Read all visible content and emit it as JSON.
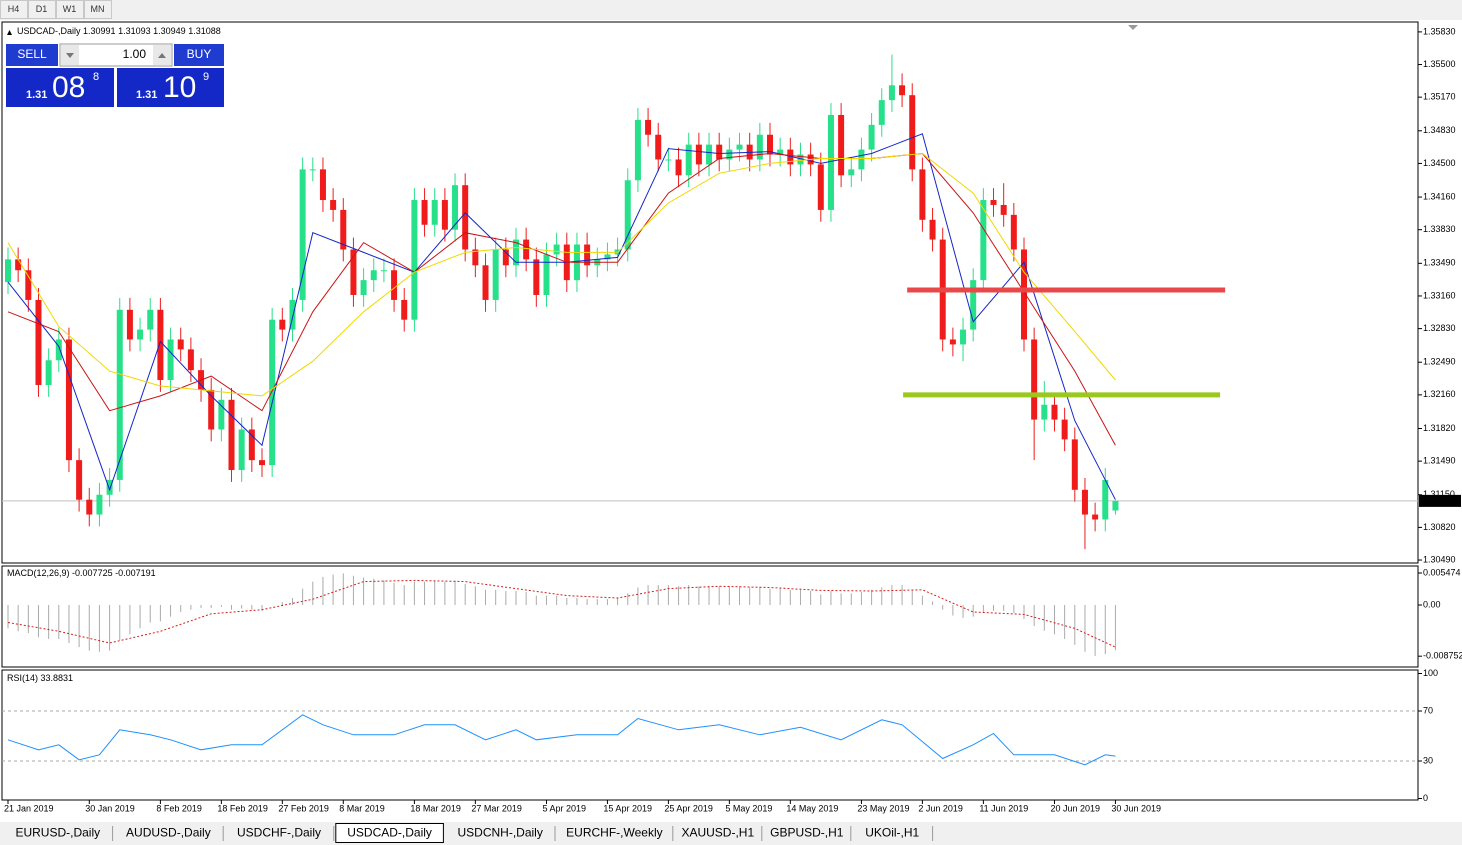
{
  "toolbar": {
    "periods": [
      "H4",
      "D1",
      "W1",
      "MN"
    ]
  },
  "trade_panel": {
    "sell": "SELL",
    "buy": "BUY",
    "lot": "1.00",
    "bid": {
      "big": "1.31",
      "pips": "08",
      "point": "8"
    },
    "ask": {
      "big": "1.31",
      "pips": "10",
      "point": "9"
    }
  },
  "chart_data": [
    {
      "type": "candlestick",
      "symbol": "USDCAD-,Daily",
      "up_color": "#26e08a",
      "down_color": "#f01c1c",
      "open": [
        1.333,
        1.3353,
        1.3342,
        1.3312,
        1.3226,
        1.3251,
        1.3272,
        1.315,
        1.311,
        1.3095,
        1.3115,
        1.313,
        1.3302,
        1.3272,
        1.3282,
        1.3302,
        1.3231,
        1.3272,
        1.3262,
        1.3241,
        1.3221,
        1.3181,
        1.3211,
        1.314,
        1.3181,
        1.315,
        1.3145,
        1.3292,
        1.3282,
        1.3312,
        1.3444,
        1.3444,
        1.3413,
        1.3403,
        1.3363,
        1.3317,
        1.3332,
        1.3342,
        1.3342,
        1.3312,
        1.3292,
        1.3413,
        1.3388,
        1.3413,
        1.3383,
        1.3428,
        1.3363,
        1.3347,
        1.3312,
        1.3363,
        1.3347,
        1.3373,
        1.3353,
        1.3317,
        1.3358,
        1.3368,
        1.3332,
        1.3368,
        1.3347,
        1.3353,
        1.3358,
        1.3363,
        1.3433,
        1.3494,
        1.3479,
        1.3454,
        1.3454,
        1.3438,
        1.3469,
        1.3449,
        1.3469,
        1.3454,
        1.3464,
        1.3469,
        1.3454,
        1.3479,
        1.3459,
        1.3464,
        1.3449,
        1.3459,
        1.3449,
        1.3403,
        1.3499,
        1.3438,
        1.3444,
        1.3464,
        1.3489,
        1.3514,
        1.3529,
        1.3519,
        1.3444,
        1.3393,
        1.3373,
        1.3272,
        1.3267,
        1.3282,
        1.3332,
        1.3413,
        1.3408,
        1.3398,
        1.3363,
        1.3272,
        1.3191,
        1.3206,
        1.3191,
        1.3171,
        1.312,
        1.3095,
        1.309,
        1.30991
      ],
      "high": [
        1.3365,
        1.3365,
        1.3354,
        1.3324,
        1.3263,
        1.3284,
        1.3284,
        1.3162,
        1.3122,
        1.3127,
        1.3142,
        1.3314,
        1.3314,
        1.3294,
        1.3314,
        1.3314,
        1.3284,
        1.3284,
        1.3274,
        1.3253,
        1.3233,
        1.3223,
        1.3223,
        1.3193,
        1.3193,
        1.3162,
        1.3304,
        1.3304,
        1.3324,
        1.3456,
        1.3456,
        1.3456,
        1.3425,
        1.3415,
        1.3375,
        1.3344,
        1.3354,
        1.3354,
        1.3354,
        1.3324,
        1.3425,
        1.3425,
        1.3425,
        1.3425,
        1.344,
        1.344,
        1.3375,
        1.3359,
        1.3375,
        1.3375,
        1.3385,
        1.3385,
        1.3365,
        1.337,
        1.338,
        1.338,
        1.338,
        1.338,
        1.3365,
        1.337,
        1.3375,
        1.3445,
        1.3506,
        1.3506,
        1.3491,
        1.3466,
        1.3466,
        1.3481,
        1.3481,
        1.3481,
        1.3481,
        1.3476,
        1.3481,
        1.3481,
        1.3491,
        1.3491,
        1.3476,
        1.3476,
        1.3471,
        1.3471,
        1.3461,
        1.3511,
        1.3511,
        1.3456,
        1.3476,
        1.3501,
        1.3526,
        1.356,
        1.3541,
        1.3531,
        1.3456,
        1.3405,
        1.3385,
        1.3284,
        1.3294,
        1.3344,
        1.3425,
        1.3425,
        1.343,
        1.341,
        1.3375,
        1.3284,
        1.323,
        1.3218,
        1.3203,
        1.3183,
        1.3132,
        1.3107,
        1.3142,
        1.31093
      ],
      "low": [
        1.3318,
        1.333,
        1.33,
        1.3214,
        1.3214,
        1.3239,
        1.3138,
        1.3098,
        1.3083,
        1.3083,
        1.3103,
        1.3118,
        1.326,
        1.326,
        1.327,
        1.3219,
        1.3219,
        1.325,
        1.3229,
        1.3209,
        1.3169,
        1.3169,
        1.3128,
        1.3128,
        1.3138,
        1.3133,
        1.3133,
        1.327,
        1.327,
        1.33,
        1.3432,
        1.3401,
        1.3391,
        1.3351,
        1.3305,
        1.3305,
        1.332,
        1.333,
        1.33,
        1.328,
        1.328,
        1.3376,
        1.3376,
        1.3371,
        1.3371,
        1.3351,
        1.3335,
        1.33,
        1.33,
        1.3335,
        1.3335,
        1.3341,
        1.3305,
        1.3305,
        1.3346,
        1.332,
        1.332,
        1.3335,
        1.3335,
        1.3341,
        1.3346,
        1.3351,
        1.3421,
        1.3467,
        1.3442,
        1.3442,
        1.3426,
        1.3426,
        1.3437,
        1.3437,
        1.3442,
        1.3442,
        1.3452,
        1.3442,
        1.3442,
        1.3447,
        1.3447,
        1.3437,
        1.3437,
        1.3437,
        1.3391,
        1.3391,
        1.3426,
        1.3426,
        1.3432,
        1.3452,
        1.3477,
        1.3502,
        1.3507,
        1.3432,
        1.3381,
        1.3361,
        1.326,
        1.3255,
        1.325,
        1.327,
        1.332,
        1.3396,
        1.3386,
        1.3351,
        1.326,
        1.315,
        1.3179,
        1.3179,
        1.3159,
        1.3108,
        1.306,
        1.3078,
        1.3078,
        1.30949
      ],
      "close": [
        1.3353,
        1.3342,
        1.3312,
        1.3226,
        1.3251,
        1.3272,
        1.315,
        1.311,
        1.3095,
        1.3115,
        1.313,
        1.3302,
        1.3272,
        1.3282,
        1.3302,
        1.3231,
        1.3272,
        1.3262,
        1.3241,
        1.3221,
        1.3181,
        1.3211,
        1.314,
        1.3181,
        1.315,
        1.3145,
        1.3292,
        1.3282,
        1.3312,
        1.3444,
        1.3444,
        1.3413,
        1.3403,
        1.3363,
        1.3317,
        1.3332,
        1.3342,
        1.3342,
        1.3312,
        1.3292,
        1.3413,
        1.3388,
        1.3413,
        1.3383,
        1.3428,
        1.3363,
        1.3347,
        1.3312,
        1.3363,
        1.3347,
        1.3373,
        1.3353,
        1.3317,
        1.3358,
        1.3368,
        1.3332,
        1.3368,
        1.3347,
        1.3353,
        1.3358,
        1.3363,
        1.3433,
        1.3494,
        1.3479,
        1.3454,
        1.3454,
        1.3438,
        1.3469,
        1.3449,
        1.3469,
        1.3454,
        1.3464,
        1.3469,
        1.3454,
        1.3479,
        1.3459,
        1.3464,
        1.3449,
        1.3459,
        1.3449,
        1.3403,
        1.3499,
        1.3438,
        1.3444,
        1.3464,
        1.3489,
        1.3514,
        1.3529,
        1.3519,
        1.3444,
        1.3393,
        1.3373,
        1.3272,
        1.3267,
        1.3282,
        1.3332,
        1.3413,
        1.3408,
        1.3398,
        1.3363,
        1.3272,
        1.3191,
        1.3206,
        1.3191,
        1.3171,
        1.312,
        1.3095,
        1.309,
        1.313,
        1.31088
      ],
      "xlim": [
        -0.59,
        138.78
      ],
      "ylim": [
        1.3046,
        1.3593
      ],
      "yticks": [
        {
          "value": 1.3583,
          "label": "1.35830"
        },
        {
          "value": 1.355,
          "label": "1.35500"
        },
        {
          "value": 1.3517,
          "label": "1.35170"
        },
        {
          "value": 1.3483,
          "label": "1.34830"
        },
        {
          "value": 1.345,
          "label": "1.34500"
        },
        {
          "value": 1.3416,
          "label": "1.34160"
        },
        {
          "value": 1.3383,
          "label": "1.33830"
        },
        {
          "value": 1.3349,
          "label": "1.33490"
        },
        {
          "value": 1.3316,
          "label": "1.33160"
        },
        {
          "value": 1.3283,
          "label": "1.32830"
        },
        {
          "value": 1.3249,
          "label": "1.32490"
        },
        {
          "value": 1.3216,
          "label": "1.32160"
        },
        {
          "value": 1.3182,
          "label": "1.31820"
        },
        {
          "value": 1.3149,
          "label": "1.31490"
        },
        {
          "value": 1.3115,
          "label": "1.31150"
        },
        {
          "value": 1.3082,
          "label": "1.30820"
        },
        {
          "value": 1.3049,
          "label": "1.30490"
        }
      ],
      "xticks": [
        {
          "value": 0,
          "label": "21 Jan 2019"
        },
        {
          "value": 8,
          "label": "30 Jan 2019"
        },
        {
          "value": 15,
          "label": "8 Feb 2019"
        },
        {
          "value": 21,
          "label": "18 Feb 2019"
        },
        {
          "value": 27,
          "label": "27 Feb 2019"
        },
        {
          "value": 33,
          "label": "8 Mar 2019"
        },
        {
          "value": 40,
          "label": "18 Mar 2019"
        },
        {
          "value": 46,
          "label": "27 Mar 2019"
        },
        {
          "value": 53,
          "label": "5 Apr 2019"
        },
        {
          "value": 59,
          "label": "15 Apr 2019"
        },
        {
          "value": 65,
          "label": "25 Apr 2019"
        },
        {
          "value": 71,
          "label": "5 May 2019"
        },
        {
          "value": 77,
          "label": "14 May 2019"
        },
        {
          "value": 84,
          "label": "23 May 2019"
        },
        {
          "value": 90,
          "label": "2 Jun 2019"
        },
        {
          "value": 96,
          "label": "11 Jun 2019"
        },
        {
          "value": 103,
          "label": "20 Jun 2019"
        },
        {
          "value": 109,
          "label": "30 Jun 2019"
        }
      ],
      "series": [
        {
          "color": "#1426c8",
          "x": [
            0,
            5,
            10,
            15,
            20,
            25,
            30,
            35,
            40,
            45,
            50,
            55,
            60,
            65,
            70,
            75,
            80,
            85,
            90,
            95,
            100,
            105,
            109
          ],
          "values": [
            1.333,
            1.3265,
            1.312,
            1.327,
            1.3215,
            1.3165,
            1.338,
            1.336,
            1.334,
            1.34,
            1.335,
            1.335,
            1.3355,
            1.3465,
            1.346,
            1.3462,
            1.345,
            1.346,
            1.348,
            1.329,
            1.335,
            1.319,
            1.311
          ]
        },
        {
          "color": "#c81414",
          "x": [
            0,
            5,
            10,
            15,
            20,
            25,
            30,
            35,
            40,
            45,
            50,
            55,
            60,
            65,
            70,
            75,
            80,
            85,
            90,
            95,
            100,
            105,
            109
          ],
          "values": [
            1.33,
            1.328,
            1.32,
            1.3215,
            1.3235,
            1.32,
            1.33,
            1.337,
            1.334,
            1.338,
            1.337,
            1.335,
            1.335,
            1.342,
            1.3455,
            1.346,
            1.3455,
            1.3455,
            1.346,
            1.34,
            1.332,
            1.324,
            1.3165
          ]
        },
        {
          "color": "#f0d800",
          "x": [
            0,
            5,
            10,
            15,
            20,
            25,
            30,
            35,
            40,
            45,
            50,
            55,
            60,
            65,
            70,
            75,
            80,
            85,
            90,
            95,
            100,
            105,
            109
          ],
          "values": [
            1.337,
            1.3285,
            1.324,
            1.3225,
            1.322,
            1.3215,
            1.325,
            1.33,
            1.334,
            1.336,
            1.3365,
            1.336,
            1.336,
            1.341,
            1.344,
            1.345,
            1.3455,
            1.3455,
            1.346,
            1.342,
            1.334,
            1.328,
            1.3231
          ]
        }
      ],
      "hlines": [
        {
          "color": "#e84848",
          "value": 1.3322,
          "x": [
            88.5,
            119.8
          ]
        },
        {
          "color": "#9ac81c",
          "value": 1.3216,
          "x": [
            88.1,
            119.3
          ]
        }
      ]
    },
    {
      "type": "macd",
      "title": "MACD(12,26,9)",
      "color": "#aaaaaa",
      "values": [
        -0.004,
        -0.0045,
        -0.0048,
        -0.0055,
        -0.0058,
        -0.0058,
        -0.0065,
        -0.0072,
        -0.0078,
        -0.008,
        -0.0078,
        -0.006,
        -0.005,
        -0.004,
        -0.003,
        -0.0028,
        -0.002,
        -0.0012,
        -0.0008,
        -0.0005,
        -0.0005,
        -0.0003,
        -0.0008,
        -0.0006,
        -0.0008,
        -0.001,
        0,
        0.0005,
        0.0012,
        0.0028,
        0.004,
        0.0048,
        0.0052,
        0.0054,
        0.005,
        0.0047,
        0.0045,
        0.0042,
        0.0038,
        0.0034,
        0.004,
        0.004,
        0.0042,
        0.004,
        0.0042,
        0.0036,
        0.0032,
        0.0026,
        0.0026,
        0.0024,
        0.0024,
        0.0022,
        0.0016,
        0.0016,
        0.0016,
        0.0012,
        0.0012,
        0.001,
        0.001,
        0.001,
        0.0012,
        0.002,
        0.003,
        0.0034,
        0.0034,
        0.0034,
        0.0032,
        0.0034,
        0.0032,
        0.0033,
        0.0032,
        0.0032,
        0.0032,
        0.003,
        0.0031,
        0.0028,
        0.0028,
        0.0026,
        0.0026,
        0.0024,
        0.0018,
        0.0024,
        0.002,
        0.002,
        0.0022,
        0.0026,
        0.003,
        0.0034,
        0.0034,
        0.0026,
        0.0016,
        0.0006,
        -0.0008,
        -0.0018,
        -0.0022,
        -0.002,
        -0.0012,
        -0.001,
        -0.001,
        -0.0014,
        -0.0024,
        -0.0036,
        -0.0044,
        -0.005,
        -0.0058,
        -0.0068,
        -0.008,
        -0.0087,
        -0.0084,
        -0.007725
      ],
      "signal": {
        "color": "#d02020",
        "x": [
          0,
          5,
          10,
          15,
          20,
          25,
          30,
          35,
          40,
          45,
          50,
          55,
          60,
          65,
          70,
          75,
          80,
          85,
          90,
          95,
          100,
          105,
          109
        ],
        "values": [
          -0.003,
          -0.0045,
          -0.0065,
          -0.0045,
          -0.0015,
          -0.0008,
          0.001,
          0.004,
          0.0042,
          0.004,
          0.0028,
          0.0016,
          0.0012,
          0.0028,
          0.0032,
          0.003,
          0.0025,
          0.0024,
          0.0026,
          -0.0012,
          -0.0016,
          -0.004,
          -0.007191
        ]
      },
      "ylim": [
        -0.01043,
        0.00667
      ],
      "yticks": [
        0.005474,
        {
          "value": 0,
          "label": "0.00"
        },
        -0.008752
      ]
    },
    {
      "type": "line",
      "title": "RSI(14)",
      "color": "#1e90ff",
      "x": [
        0,
        3,
        5,
        7,
        9,
        11,
        14,
        16,
        19,
        22,
        25,
        29,
        31,
        34,
        38,
        41,
        44,
        47,
        50,
        52,
        56,
        60,
        62,
        66,
        70,
        74,
        78,
        82,
        86,
        88,
        92,
        95,
        97,
        99,
        103,
        106,
        108,
        109
      ],
      "values": [
        47,
        39,
        43,
        31,
        35,
        55,
        51,
        47,
        39,
        43,
        43,
        67,
        59,
        51,
        51,
        59,
        59,
        47,
        55,
        47,
        51,
        51,
        64,
        55,
        59,
        51,
        57,
        47,
        63,
        59,
        32,
        43,
        52,
        35,
        35,
        27,
        35,
        33.8831
      ],
      "ylim": [
        -1.2,
        102.8
      ],
      "yticks": [
        100,
        70,
        30,
        0
      ]
    }
  ],
  "tabs": [
    "EURUSD-,Daily",
    "AUDUSD-,Daily",
    "USDCHF-,Daily",
    "USDCAD-,Daily",
    "USDCNH-,Daily",
    "EURCHF-,Weekly",
    "XAUUSD-,H1",
    "GBPUSD-,H1",
    "UKOil-,H1"
  ],
  "active_tab": 3
}
